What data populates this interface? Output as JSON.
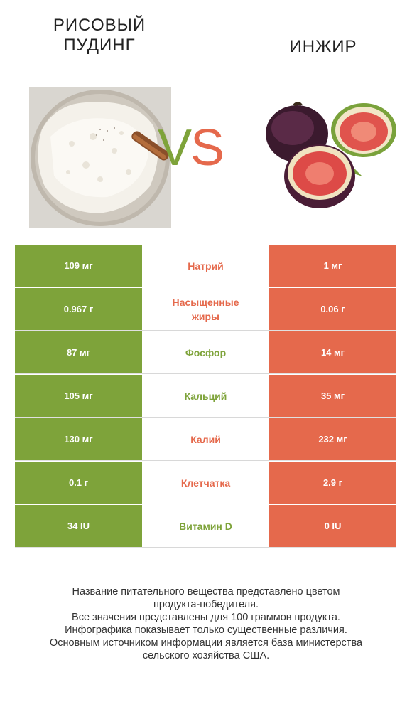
{
  "left_food": {
    "title_line1": "РИСОВЫЙ",
    "title_line2": "ПУДИНГ",
    "image": "rice-pudding-photo"
  },
  "right_food": {
    "title": "ИНЖИР",
    "image": "figs-photo"
  },
  "vs": {
    "v": "V",
    "s": "S"
  },
  "colors": {
    "left": "#7ea33a",
    "right": "#e5694c"
  },
  "rows": [
    {
      "left": "109 мг",
      "nutrient": "Натрий",
      "right": "1 мг",
      "winner": "right"
    },
    {
      "left": "0.967 г",
      "nutrient": "Насыщенные жиры",
      "right": "0.06 г",
      "winner": "right"
    },
    {
      "left": "87 мг",
      "nutrient": "Фосфор",
      "right": "14 мг",
      "winner": "left"
    },
    {
      "left": "105 мг",
      "nutrient": "Кальций",
      "right": "35 мг",
      "winner": "left"
    },
    {
      "left": "130 мг",
      "nutrient": "Калий",
      "right": "232 мг",
      "winner": "right"
    },
    {
      "left": "0.1 г",
      "nutrient": "Клетчатка",
      "right": "2.9 г",
      "winner": "right"
    },
    {
      "left": "34 IU",
      "nutrient": "Витамин D",
      "right": "0 IU",
      "winner": "left"
    }
  ],
  "footer": [
    "Название питательного вещества представлено цветом",
    "продукта-победителя.",
    "Все значения представлены для 100 граммов продукта.",
    "Инфографика показывает только существенные различия.",
    "Основным источником информации является база министерства",
    "сельского хозяйства США."
  ]
}
